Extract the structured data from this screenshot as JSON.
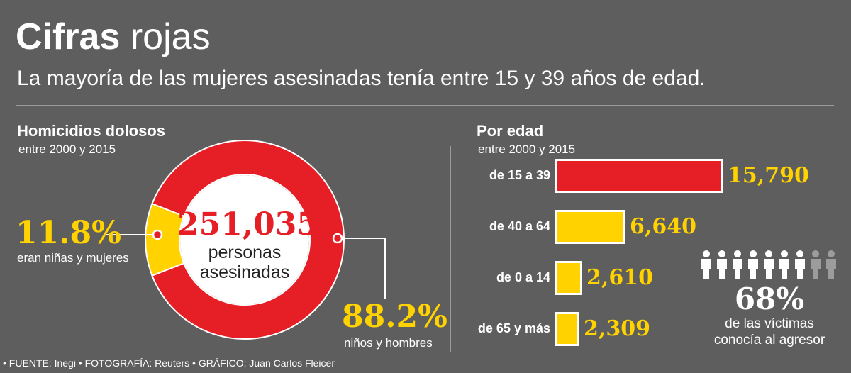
{
  "header": {
    "title_bold": "Cifras",
    "title_light": "rojas",
    "subtitle": "La mayoría de las mujeres asesinadas tenía entre 15 y 39 años de edad."
  },
  "donut": {
    "section_title": "Homicidios dolosos",
    "section_subtitle": "entre 2000 y 2015",
    "total": "251,035",
    "total_label_line1": "personas",
    "total_label_line2": "asesinadas",
    "women_pct": "11.8%",
    "women_label": "eran niñas y mujeres",
    "men_pct": "88.2%",
    "men_label": "niños y hombres"
  },
  "bars": {
    "section_title": "Por edad",
    "section_subtitle": "entre 2000 y 2015"
  },
  "people": {
    "pct": "68%",
    "line1": "de las víctimas",
    "line2": "conocía al agresor",
    "known": 7,
    "total": 9
  },
  "footer": {
    "text": "• FUENTE: Inegi  • FOTOGRAFÍA: Reuters  • GRÁFICO: Juan Carlos Fleicer"
  },
  "colors": {
    "background": "#5e5e5e",
    "red": "#e61e25",
    "yellow": "#ffd200",
    "white": "#ffffff",
    "gray_figure": "#9c9c9c"
  },
  "chart_data": [
    {
      "type": "pie",
      "title": "Homicidios dolosos",
      "subtitle": "entre 2000 y 2015",
      "categories": [
        "eran niñas y mujeres",
        "niños y hombres"
      ],
      "values": [
        11.8,
        88.2
      ],
      "unit": "%",
      "total": 251035
    },
    {
      "type": "bar",
      "orientation": "horizontal",
      "title": "Por edad",
      "subtitle": "entre 2000 y 2015",
      "categories": [
        "de 15 a 39",
        "de 40 a 64",
        "de 0 a 14",
        "de 65 y más"
      ],
      "values": [
        15790,
        6640,
        2610,
        2309
      ],
      "value_labels": [
        "15,790",
        "6,640",
        "2,610",
        "2,309"
      ],
      "highlight": [
        true,
        false,
        false,
        false
      ]
    }
  ]
}
